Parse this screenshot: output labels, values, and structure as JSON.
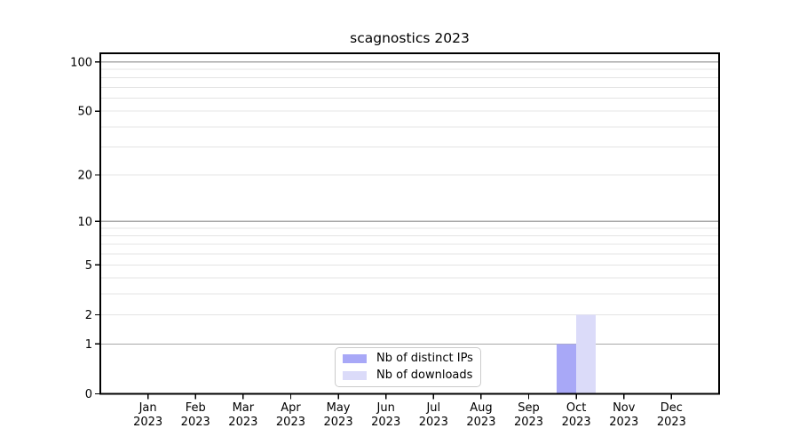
{
  "figure": {
    "background": "#ffffff"
  },
  "chart_data": {
    "type": "bar",
    "title": "scagnostics 2023",
    "categories": [
      "Jan 2023",
      "Feb 2023",
      "Mar 2023",
      "Apr 2023",
      "May 2023",
      "Jun 2023",
      "Jul 2023",
      "Aug 2023",
      "Sep 2023",
      "Oct 2023",
      "Nov 2023",
      "Dec 2023"
    ],
    "series": [
      {
        "name": "Nb of distinct IPs",
        "color": "#a8a8f7",
        "values": [
          0,
          0,
          0,
          0,
          0,
          0,
          0,
          0,
          0,
          1,
          0,
          0
        ]
      },
      {
        "name": "Nb of downloads",
        "color": "#dbdbf9",
        "values": [
          0,
          0,
          0,
          0,
          0,
          0,
          0,
          0,
          0,
          2,
          0,
          0
        ]
      }
    ],
    "yscale": "log1p",
    "ylim": [
      0,
      113
    ],
    "yticks_labeled": [
      0,
      1,
      2,
      5,
      10,
      20,
      50,
      100
    ],
    "yticks_major": [
      1,
      10,
      100
    ],
    "yticks_minor": [
      2,
      3,
      4,
      5,
      6,
      7,
      8,
      9,
      20,
      30,
      40,
      50,
      60,
      70,
      80,
      90
    ],
    "grid": true,
    "legend_position": "lower center",
    "colors": {
      "major_grid": "#a8a8a8",
      "minor_grid": "#e4e4e4",
      "axis": "#000000",
      "text": "#000000"
    }
  }
}
